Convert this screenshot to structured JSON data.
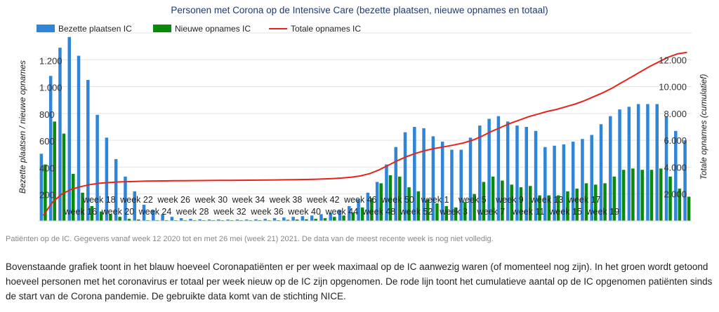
{
  "chart_data": {
    "type": "bar",
    "title": "Personen met Corona op de Intensive Care (bezette plaatsen, nieuwe opnames en totaal)",
    "ylabel_left": "Bezette plaatsen / nieuwe opnames",
    "ylabel_right": "Totale opnames (cumulatief)",
    "ylim_left": [
      0,
      1400
    ],
    "ylim_right": [
      0,
      14000
    ],
    "yticks_left": [
      "200",
      "400",
      "600",
      "800",
      "1.000",
      "1.200"
    ],
    "yticks_right": [
      "2.000",
      "4.000",
      "6.000",
      "8.000",
      "10.000",
      "12.000"
    ],
    "grid": true,
    "legend_position": "top-left",
    "colors": {
      "occupied": "#2f86d9",
      "new": "#0a8a0a",
      "total": "#e8231c"
    },
    "x_labels_upper": [
      "week 18",
      "week 22",
      "week 26",
      "week 30",
      "week 34",
      "week 38",
      "week 42",
      "week 46",
      "week 50",
      "week 1",
      "week 5",
      "week 9",
      "week 13",
      "week 17"
    ],
    "x_labels_lower": [
      "week 16",
      "week 20",
      "week 24",
      "week 28",
      "week 32",
      "week 36",
      "week 40",
      "week 44",
      "week 48",
      "week 52",
      "week 3",
      "week 7",
      "week 11",
      "week 15",
      "week 19"
    ],
    "series": [
      {
        "name": "Bezette plaatsen IC",
        "type": "bar",
        "values": [
          500,
          1080,
          1290,
          1370,
          1230,
          1050,
          790,
          620,
          460,
          330,
          220,
          120,
          80,
          50,
          30,
          20,
          15,
          12,
          10,
          10,
          10,
          10,
          10,
          12,
          15,
          20,
          25,
          30,
          35,
          40,
          50,
          60,
          80,
          110,
          160,
          210,
          290,
          420,
          550,
          660,
          700,
          690,
          630,
          590,
          530,
          530,
          620,
          710,
          760,
          780,
          740,
          710,
          700,
          670,
          550,
          560,
          570,
          590,
          610,
          640,
          720,
          780,
          830,
          850,
          870,
          870,
          870,
          780,
          670,
          600
        ]
      },
      {
        "name": "Nieuwe opnames IC",
        "type": "bar",
        "values": [
          420,
          740,
          650,
          350,
          210,
          110,
          70,
          50,
          30,
          15,
          10,
          5,
          5,
          5,
          5,
          5,
          5,
          5,
          5,
          5,
          5,
          5,
          5,
          5,
          5,
          5,
          8,
          10,
          12,
          15,
          20,
          30,
          40,
          60,
          100,
          170,
          280,
          340,
          330,
          250,
          220,
          160,
          130,
          110,
          100,
          140,
          200,
          290,
          330,
          300,
          270,
          250,
          260,
          190,
          190,
          190,
          220,
          240,
          280,
          270,
          280,
          330,
          380,
          390,
          380,
          380,
          390,
          330,
          240,
          180
        ]
      },
      {
        "name": "Totale opnames IC",
        "type": "line",
        "values": [
          400,
          1400,
          2000,
          2350,
          2550,
          2700,
          2800,
          2850,
          2900,
          2920,
          2940,
          2960,
          2970,
          2980,
          2990,
          2995,
          3000,
          3005,
          3010,
          3015,
          3020,
          3025,
          3030,
          3035,
          3040,
          3050,
          3060,
          3070,
          3080,
          3100,
          3120,
          3150,
          3190,
          3250,
          3350,
          3520,
          3800,
          4150,
          4500,
          4800,
          5050,
          5250,
          5400,
          5520,
          5650,
          5800,
          6000,
          6300,
          6650,
          6950,
          7250,
          7500,
          7750,
          7950,
          8150,
          8300,
          8500,
          8700,
          8950,
          9250,
          9550,
          9900,
          10300,
          10700,
          11100,
          11500,
          11850,
          12200,
          12450,
          12550
        ]
      }
    ]
  },
  "caption": "Patiënten op de IC. Gegevens vanaf week 12 2020 tot en met 26 mei (week 21) 2021. De data van de meest recente week is nog niet volledig.",
  "description": "Bovenstaande grafiek toont in het blauw hoeveel Coronapatiënten er per week maximaal op de IC aanwezig waren (of momenteel nog zijn). In het groen wordt getoond hoeveel personen met het coronavirus er totaal per week nieuw op de IC zijn opgenomen. De rode lijn toont het cumulatieve aantal op de IC opgenomen patiënten sinds de start van de Corona pandemie. De gebruikte data komt van de stichting NICE."
}
